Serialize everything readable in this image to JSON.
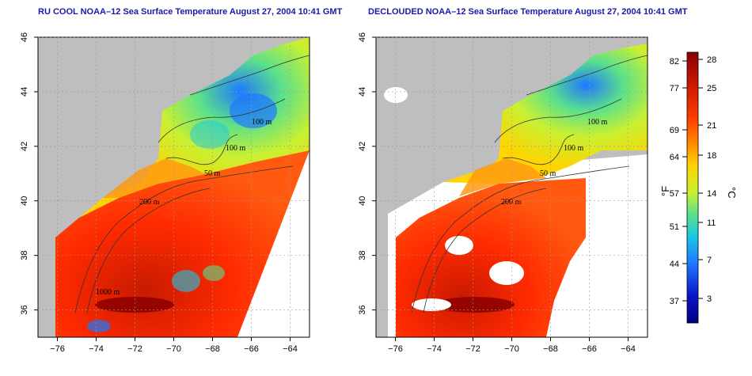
{
  "titles": {
    "left": "RU COOL NOAA–12 Sea Surface Temperature August 27, 2004 10:41 GMT",
    "right": "DECLOUDED NOAA–12 Sea Surface Temperature August 27, 2004 10:41 GMT"
  },
  "axes": {
    "x_ticks": [
      "−76",
      "−74",
      "−72",
      "−70",
      "−68",
      "−66",
      "−64"
    ],
    "y_ticks": [
      "36",
      "38",
      "40",
      "42",
      "44",
      "46"
    ],
    "lon_range": [
      -77,
      -63
    ],
    "lat_range": [
      35,
      46
    ]
  },
  "contour_labels": [
    "100 m",
    "100 m",
    "50 m",
    "200 m",
    "50 m",
    "1000 m"
  ],
  "colorbar": {
    "fahrenheit_label": "°F",
    "celsius_label": "°C",
    "fahrenheit_ticks": [
      "82",
      "77",
      "69",
      "64",
      "57",
      "51",
      "44",
      "37"
    ],
    "celsius_ticks": [
      "28",
      "25",
      "21",
      "18",
      "14",
      "11",
      "7",
      "3"
    ],
    "colors": [
      "#8b0000",
      "#c81a00",
      "#ff3a00",
      "#ff8c00",
      "#ffd400",
      "#c8f032",
      "#5ae08c",
      "#19c8e6",
      "#1e78ff",
      "#0a14c8",
      "#000080"
    ]
  },
  "colors": {
    "land": "#bebebe",
    "cloud": "#ffffff",
    "title": "#1a1aa8"
  }
}
